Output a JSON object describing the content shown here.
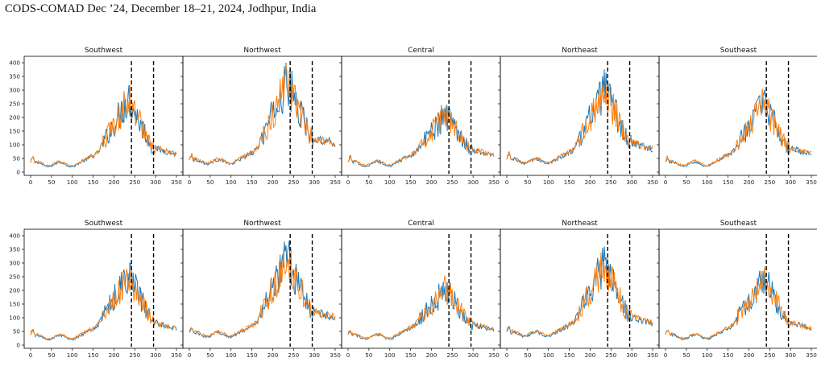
{
  "header": {
    "text": "CODS-COMAD Dec ’24, December 18–21, 2024, Jodhpur, India"
  },
  "colors": {
    "series_a": "#1f77b4",
    "series_b": "#ff7f0e",
    "vline": "#000000",
    "frame": "#000000"
  },
  "chart_data": [
    {
      "type": "line",
      "title": "Southwest",
      "xlim": [
        0,
        350
      ],
      "ylim": [
        0,
        400
      ],
      "xticks": [
        0,
        50,
        100,
        150,
        200,
        250,
        300,
        350
      ],
      "yticks": [
        0,
        50,
        100,
        150,
        200,
        250,
        300,
        350,
        400
      ],
      "vlines": [
        242,
        295
      ],
      "peak": 270,
      "base": 28,
      "late": 75,
      "series": [
        {
          "values": []
        },
        {
          "values": []
        }
      ]
    },
    {
      "type": "line",
      "title": "Northwest",
      "xlim": [
        0,
        350
      ],
      "ylim": [
        0,
        400
      ],
      "xticks": [
        0,
        50,
        100,
        150,
        200,
        250,
        300,
        350
      ],
      "yticks": [
        0,
        50,
        100,
        150,
        200,
        250,
        300,
        350,
        400
      ],
      "vlines": [
        242,
        295
      ],
      "peak": 330,
      "base": 38,
      "late": 115,
      "series": [
        {
          "values": []
        },
        {
          "values": []
        }
      ]
    },
    {
      "type": "line",
      "title": "Central",
      "xlim": [
        0,
        350
      ],
      "ylim": [
        0,
        400
      ],
      "xticks": [
        0,
        50,
        100,
        150,
        200,
        250,
        300,
        350
      ],
      "yticks": [
        0,
        50,
        100,
        150,
        200,
        250,
        300,
        350,
        400
      ],
      "vlines": [
        242,
        295
      ],
      "peak": 215,
      "base": 30,
      "late": 70,
      "series": [
        {
          "values": []
        },
        {
          "values": []
        }
      ]
    },
    {
      "type": "line",
      "title": "Northeast",
      "xlim": [
        0,
        350
      ],
      "ylim": [
        0,
        400
      ],
      "xticks": [
        0,
        50,
        100,
        150,
        200,
        250,
        300,
        350
      ],
      "yticks": [
        0,
        50,
        100,
        150,
        200,
        250,
        300,
        350,
        400
      ],
      "vlines": [
        242,
        295
      ],
      "peak": 300,
      "base": 40,
      "late": 95,
      "series": [
        {
          "values": []
        },
        {
          "values": []
        }
      ]
    },
    {
      "type": "line",
      "title": "Southeast",
      "xlim": [
        0,
        350
      ],
      "ylim": [
        0,
        400
      ],
      "xticks": [
        0,
        50,
        100,
        150,
        200,
        250,
        300,
        350
      ],
      "yticks": [
        0,
        50,
        100,
        150,
        200,
        250,
        300,
        350,
        400
      ],
      "vlines": [
        242,
        295
      ],
      "peak": 255,
      "base": 30,
      "late": 75,
      "series": [
        {
          "values": []
        },
        {
          "values": []
        }
      ]
    },
    {
      "type": "line",
      "title": "Southwest",
      "xlim": [
        0,
        350
      ],
      "ylim": [
        0,
        400
      ],
      "xticks": [
        0,
        50,
        100,
        150,
        200,
        250,
        300,
        350
      ],
      "yticks": [
        0,
        50,
        100,
        150,
        200,
        250,
        300,
        350,
        400
      ],
      "vlines": [
        242,
        295
      ],
      "peak": 260,
      "base": 28,
      "late": 70,
      "series": [
        {
          "values": []
        },
        {
          "values": []
        }
      ]
    },
    {
      "type": "line",
      "title": "Northwest",
      "xlim": [
        0,
        350
      ],
      "ylim": [
        0,
        400
      ],
      "xticks": [
        0,
        50,
        100,
        150,
        200,
        250,
        300,
        350
      ],
      "yticks": [
        0,
        50,
        100,
        150,
        200,
        250,
        300,
        350,
        400
      ],
      "vlines": [
        242,
        295
      ],
      "peak": 320,
      "base": 38,
      "late": 110,
      "series": [
        {
          "values": []
        },
        {
          "values": []
        }
      ]
    },
    {
      "type": "line",
      "title": "Central",
      "xlim": [
        0,
        350
      ],
      "ylim": [
        0,
        400
      ],
      "xticks": [
        0,
        50,
        100,
        150,
        200,
        250,
        300,
        350
      ],
      "yticks": [
        0,
        50,
        100,
        150,
        200,
        250,
        300,
        350,
        400
      ],
      "vlines": [
        242,
        295
      ],
      "peak": 210,
      "base": 30,
      "late": 65,
      "series": [
        {
          "values": []
        },
        {
          "values": []
        }
      ]
    },
    {
      "type": "line",
      "title": "Northeast",
      "xlim": [
        0,
        350
      ],
      "ylim": [
        0,
        400
      ],
      "xticks": [
        0,
        50,
        100,
        150,
        200,
        250,
        300,
        350
      ],
      "yticks": [
        0,
        50,
        100,
        150,
        200,
        250,
        300,
        350,
        400
      ],
      "vlines": [
        242,
        295
      ],
      "peak": 300,
      "base": 40,
      "late": 90,
      "series": [
        {
          "values": []
        },
        {
          "values": []
        }
      ]
    },
    {
      "type": "line",
      "title": "Southeast",
      "xlim": [
        0,
        350
      ],
      "ylim": [
        0,
        400
      ],
      "xticks": [
        0,
        50,
        100,
        150,
        200,
        250,
        300,
        350
      ],
      "yticks": [
        0,
        50,
        100,
        150,
        200,
        250,
        300,
        350,
        400
      ],
      "vlines": [
        242,
        295
      ],
      "peak": 250,
      "base": 30,
      "late": 70,
      "series": [
        {
          "values": []
        },
        {
          "values": []
        }
      ]
    }
  ]
}
